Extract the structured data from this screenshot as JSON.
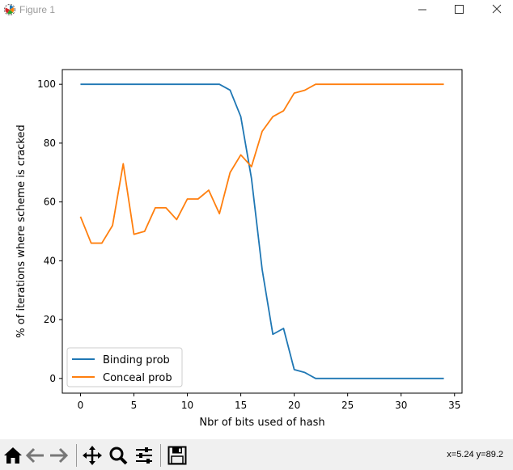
{
  "window": {
    "title": "Figure 1"
  },
  "icons": {
    "app": "matplotlib-logo-icon",
    "minimize": "minimize-icon",
    "maximize": "maximize-icon",
    "close": "close-icon",
    "home": "home-icon",
    "back": "back-arrow-icon",
    "forward": "forward-arrow-icon",
    "pan": "move-icon",
    "zoom": "zoom-magnifier-icon",
    "configure": "sliders-icon",
    "save": "save-disk-icon"
  },
  "status": {
    "coords": "x=5.24 y=89.2"
  },
  "colors": {
    "binding": "#1f77b4",
    "conceal": "#ff7f0e"
  },
  "chart_data": {
    "type": "line",
    "title": "",
    "xlabel": "Nbr of bits used of hash",
    "ylabel": "% of iterations where scheme is cracked",
    "xlim": [
      -1.7,
      35.7
    ],
    "ylim": [
      -5,
      105
    ],
    "xticks": [
      0,
      5,
      10,
      15,
      20,
      25,
      30,
      35
    ],
    "yticks": [
      0,
      20,
      40,
      60,
      80,
      100
    ],
    "grid": false,
    "legend_position": "lower-left",
    "x": [
      0,
      1,
      2,
      3,
      4,
      5,
      6,
      7,
      8,
      9,
      10,
      11,
      12,
      13,
      14,
      15,
      16,
      17,
      18,
      19,
      20,
      21,
      22,
      23,
      24,
      25,
      26,
      27,
      28,
      29,
      30,
      31,
      32,
      33,
      34
    ],
    "series": [
      {
        "name": "Binding prob",
        "color": "#1f77b4",
        "values": [
          100,
          100,
          100,
          100,
          100,
          100,
          100,
          100,
          100,
          100,
          100,
          100,
          100,
          100,
          98,
          89,
          68,
          37,
          15,
          17,
          3,
          2,
          0,
          0,
          0,
          0,
          0,
          0,
          0,
          0,
          0,
          0,
          0,
          0,
          0
        ]
      },
      {
        "name": "Conceal prob",
        "color": "#ff7f0e",
        "values": [
          55,
          46,
          46,
          52,
          73,
          49,
          50,
          58,
          58,
          54,
          61,
          61,
          64,
          56,
          70,
          76,
          72,
          84,
          89,
          91,
          97,
          98,
          100,
          100,
          100,
          100,
          100,
          100,
          100,
          100,
          100,
          100,
          100,
          100,
          100
        ]
      }
    ]
  }
}
